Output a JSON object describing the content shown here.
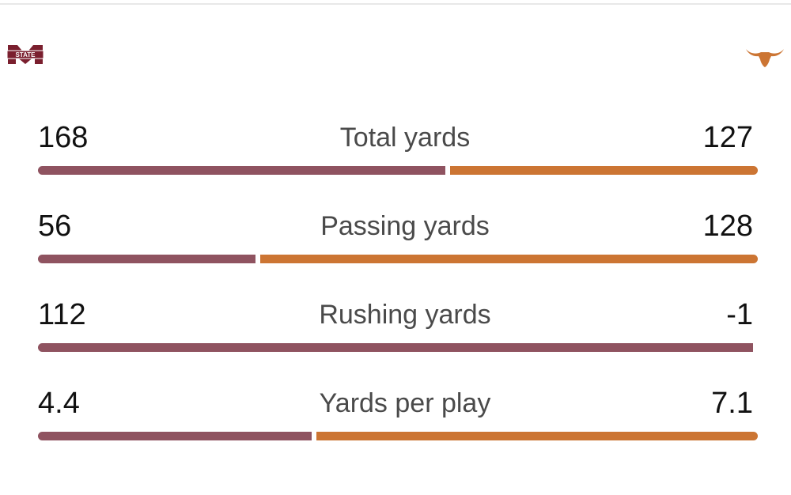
{
  "teams": {
    "left": {
      "name": "Mississippi State",
      "logo_icon": "msu-m-state-logo-icon",
      "logo_text": "STATE",
      "color": "#8f5360"
    },
    "right": {
      "name": "Texas",
      "logo_icon": "longhorn-logo-icon",
      "color": "#cc7533"
    }
  },
  "stats": [
    {
      "label": "Total yards",
      "left": "168",
      "right": "127",
      "left_value": 168,
      "right_value": 127
    },
    {
      "label": "Passing yards",
      "left": "56",
      "right": "128",
      "left_value": 56,
      "right_value": 128
    },
    {
      "label": "Rushing yards",
      "left": "112",
      "right": "-1",
      "left_value": 112,
      "right_value": -1
    },
    {
      "label": "Yards per play",
      "left": "4.4",
      "right": "7.1",
      "left_value": 4.4,
      "right_value": 7.1
    }
  ]
}
